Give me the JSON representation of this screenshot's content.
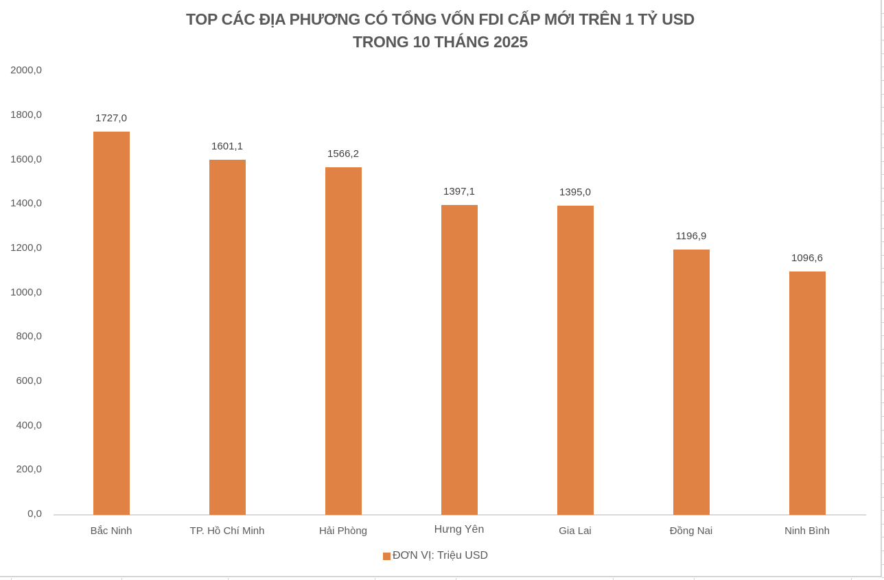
{
  "chart_data": {
    "type": "bar",
    "title": "TOP CÁC ĐỊA PHƯƠNG CÓ TỔNG VỐN FDI CẤP MỚI TRÊN 1 TỶ USD TRONG 10 THÁNG 2025",
    "title_lines": [
      "TOP CÁC ĐỊA PHƯƠNG CÓ TỔNG VỐN FDI CẤP MỚI TRÊN 1 TỶ USD",
      "TRONG 10 THÁNG 2025"
    ],
    "categories": [
      "Bắc Ninh",
      "TP. Hồ Chí Minh",
      "Hải Phòng",
      "Hưng Yên",
      "Gia Lai",
      "Đồng Nai",
      "Ninh Bình"
    ],
    "series": [
      {
        "name": "ĐƠN VỊ: Triệu USD",
        "color": "#DF8244",
        "values": [
          1727.0,
          1601.1,
          1566.2,
          1397.1,
          1395.0,
          1196.9,
          1096.6
        ],
        "value_labels": [
          "1727,0",
          "1601,1",
          "1566,2",
          "1397,1",
          "1395,0",
          "1196,9",
          "1096,6"
        ]
      }
    ],
    "xlabel": "",
    "ylabel": "",
    "ylim": [
      0,
      2000
    ],
    "yticks": [
      0,
      200,
      400,
      600,
      800,
      1000,
      1200,
      1400,
      1600,
      1800,
      2000
    ],
    "ytick_labels": [
      "0,0",
      "200,0",
      "400,0",
      "600,0",
      "800,0",
      "1000,0",
      "1200,0",
      "1400,0",
      "1600,0",
      "1800,0",
      "2000,0"
    ],
    "grid": false,
    "legend_position": "bottom",
    "data_labels": true
  }
}
